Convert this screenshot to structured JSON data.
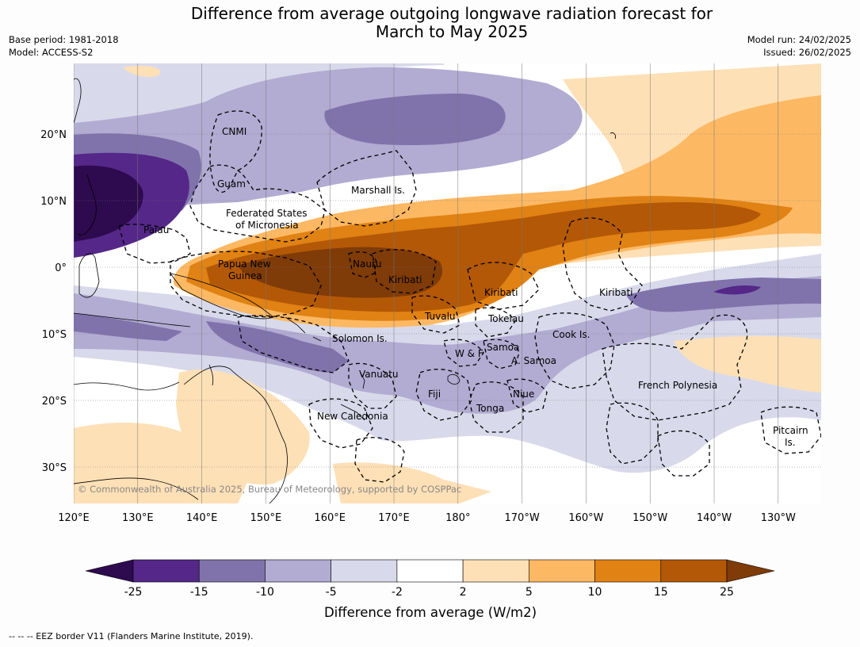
{
  "header": {
    "title_line1": "Difference from average outgoing longwave radiation forecast for",
    "title_line2": "March to May 2025",
    "base_period": "Base period: 1981-2018",
    "model": "Model: ACCESS-S2",
    "model_run": "Model run: 24/02/2025",
    "issued": "Issued: 26/02/2025"
  },
  "map": {
    "lon_labels": [
      "120°E",
      "130°E",
      "140°E",
      "150°E",
      "160°E",
      "170°E",
      "180°",
      "170°W",
      "160°W",
      "150°W",
      "140°W",
      "130°W"
    ],
    "lat_labels": [
      "20°N",
      "10°N",
      "0°",
      "10°S",
      "20°S",
      "30°S"
    ],
    "places": [
      "CNMI",
      "Guam",
      "Marshall Is.",
      "Federated States",
      "of Micronesia",
      "Palau",
      "Papua New",
      "Guinea",
      "Nauru",
      "Kiribati",
      "Kiribati",
      "Kiribati",
      "Tuvalu",
      "Tokelau",
      "Solomon Is.",
      "Cook Is.",
      "Samoa",
      "W & F",
      "A. Samoa",
      "Vanuatu",
      "Fiji",
      "Niue",
      "French Polynesia",
      "Tonga",
      "New Caledonia",
      "Pitcairn",
      "Is."
    ],
    "copyright": "© Commonwealth of Australia 2025, Bureau of Meteorology, supported by COSPPac"
  },
  "colorbar": {
    "title": "Difference from average (W/m2)",
    "ticks": [
      "-25",
      "-15",
      "-10",
      "-5",
      "-2",
      "2",
      "5",
      "10",
      "15",
      "25"
    ],
    "colors": [
      "#2e0a4f",
      "#542788",
      "#8073ac",
      "#b2abd2",
      "#d8daeb",
      "#ffffff",
      "#fee0b6",
      "#fdb863",
      "#e08214",
      "#b35806",
      "#7f3b08"
    ]
  },
  "footer": {
    "legend": "--  --  -- EEZ border V11 (Flanders Marine Institute, 2019)."
  }
}
